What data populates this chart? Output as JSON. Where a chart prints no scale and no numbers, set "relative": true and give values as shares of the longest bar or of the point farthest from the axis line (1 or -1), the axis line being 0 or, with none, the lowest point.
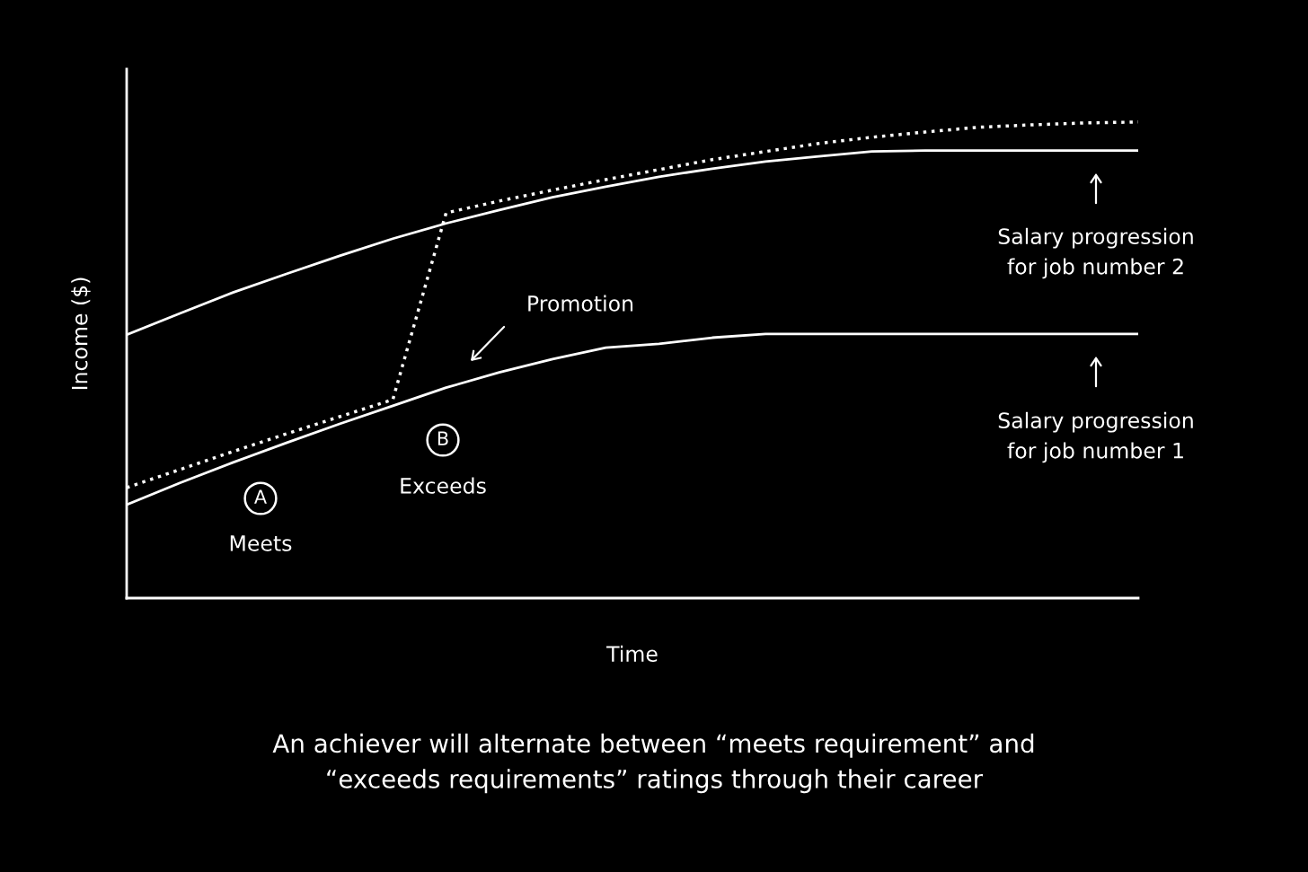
{
  "chart_data": {
    "type": "line",
    "relative": true,
    "xlabel": "Time",
    "ylabel": "Income ($)",
    "categories": [
      null,
      null,
      null,
      null,
      null,
      null,
      null,
      null,
      null,
      null,
      null,
      null,
      null,
      null,
      null,
      null,
      null,
      null,
      null,
      null
    ],
    "series": [
      {
        "color": "#ffffff",
        "line_style": "solid",
        "values": [
          0.196,
          0.242,
          0.285,
          0.326,
          0.366,
          0.404,
          0.442,
          0.474,
          0.502,
          0.526,
          0.534,
          0.547,
          0.555,
          0.555,
          0.555,
          0.555,
          0.555,
          0.555,
          0.555,
          0.555
        ]
      },
      {
        "color": "#ffffff",
        "line_style": "solid",
        "values": [
          0.553,
          0.598,
          0.642,
          0.681,
          0.719,
          0.755,
          0.787,
          0.815,
          0.842,
          0.864,
          0.885,
          0.902,
          0.917,
          0.928,
          0.938,
          0.94,
          0.94,
          0.94,
          0.94,
          0.94
        ]
      },
      {
        "color": "#ffffff",
        "line_style": "dotted",
        "values": [
          0.232,
          0.27,
          0.308,
          0.345,
          0.381,
          0.417,
          0.809,
          0.834,
          0.857,
          0.879,
          0.9,
          0.921,
          0.938,
          0.955,
          0.968,
          0.979,
          0.989,
          0.994,
          0.998,
          1.0
        ]
      }
    ],
    "annotations": [
      "A",
      "Meets",
      "B",
      "Exceeds",
      "Promotion",
      "Salary progression\nfor job number 2",
      "Salary progression\nfor job number 1",
      "An achiever will alternate between “meets requirement” and\n“exceeds requirements” ratings through their career"
    ],
    "grid": false,
    "legend": false,
    "marker": "none"
  }
}
